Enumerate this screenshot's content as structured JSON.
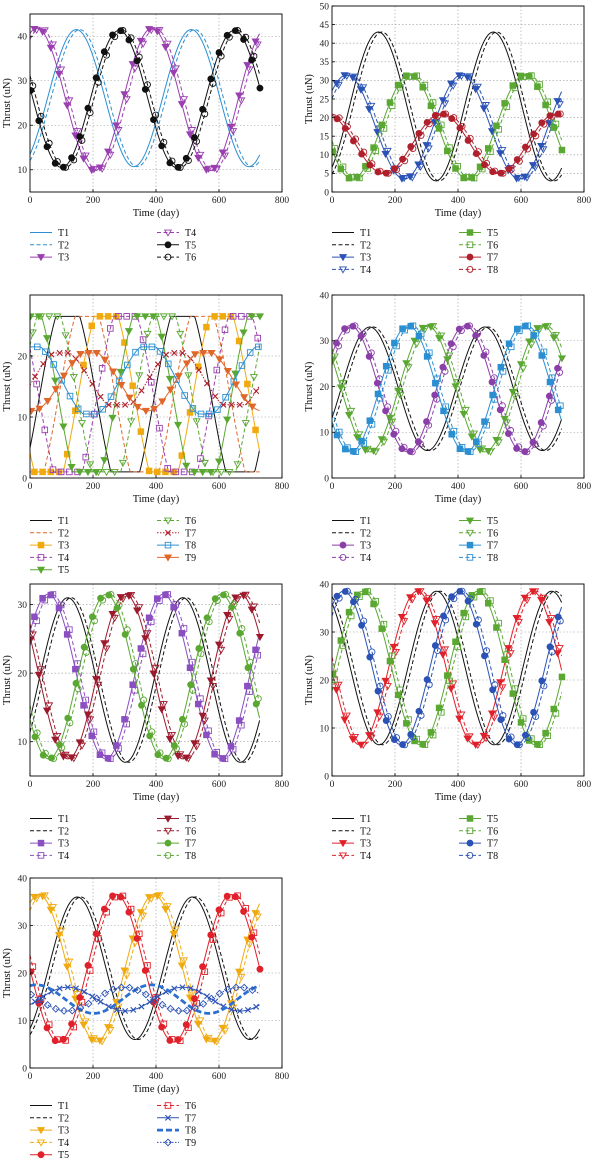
{
  "chart_data": [
    {
      "type": "line",
      "xlabel": "Time (day)",
      "ylabel": "Thrust (uN)",
      "xlim": [
        0,
        800
      ],
      "ylim": [
        5,
        45
      ],
      "xticks": [
        0,
        200,
        400,
        600,
        800
      ],
      "yticks": [
        10,
        20,
        30,
        40
      ],
      "grid": true,
      "legend": "bottom",
      "series": [
        {
          "name": "T1",
          "color": "#2b8fd1",
          "dash": "solid",
          "marker": "none",
          "mean": 26.1,
          "amp": 15.4,
          "period": 365,
          "phase": 147,
          "x_end": 730
        },
        {
          "name": "T2",
          "color": "#2b8fd1",
          "dash": "dashed",
          "marker": "none",
          "mean": 26.1,
          "amp": 15.4,
          "period": 365,
          "phase": 158,
          "x_end": 730
        },
        {
          "name": "T3",
          "color": "#9a3fb0",
          "dash": "solid",
          "marker": "tri-down",
          "mean": 25.8,
          "amp": 16.0,
          "period": 365,
          "phase": 22,
          "x_end": 730
        },
        {
          "name": "T4",
          "color": "#9a3fb0",
          "dash": "dashed",
          "marker": "tri-down-open",
          "mean": 25.8,
          "amp": 16.0,
          "period": 365,
          "phase": 33,
          "x_end": 730
        },
        {
          "name": "T5",
          "color": "#111111",
          "dash": "solid",
          "marker": "circle",
          "mean": 25.9,
          "amp": 15.4,
          "period": 365,
          "phase": 283,
          "x_end": 730
        },
        {
          "name": "T6",
          "color": "#111111",
          "dash": "dashed",
          "marker": "circle-open",
          "mean": 25.9,
          "amp": 15.4,
          "period": 365,
          "phase": 294,
          "x_end": 730
        }
      ]
    },
    {
      "type": "line",
      "xlabel": "Time (day)",
      "ylabel": "Thrust (uN)",
      "xlim": [
        0,
        800
      ],
      "ylim": [
        0,
        50
      ],
      "xticks": [
        0,
        200,
        400,
        600,
        800
      ],
      "yticks": [
        0,
        5,
        10,
        15,
        20,
        25,
        30,
        35,
        40,
        45,
        50
      ],
      "grid": true,
      "legend": "bottom",
      "series": [
        {
          "name": "T1",
          "color": "#111111",
          "dash": "solid",
          "marker": "none",
          "mean": 23.0,
          "amp": 20.0,
          "period": 365,
          "phase": 147,
          "x_end": 730
        },
        {
          "name": "T2",
          "color": "#111111",
          "dash": "dashed",
          "marker": "none",
          "mean": 23.0,
          "amp": 20.0,
          "period": 365,
          "phase": 158,
          "x_end": 730
        },
        {
          "name": "T3",
          "color": "#2b52b5",
          "dash": "solid",
          "marker": "tri-down",
          "mean": 17.5,
          "amp": 14.0,
          "period": 365,
          "phase": 47,
          "x_end": 730
        },
        {
          "name": "T4",
          "color": "#2b52b5",
          "dash": "dashed",
          "marker": "tri-down-open",
          "mean": 17.5,
          "amp": 14.0,
          "period": 365,
          "phase": 58,
          "x_end": 730
        },
        {
          "name": "T5",
          "color": "#5aa832",
          "dash": "solid",
          "marker": "square",
          "mean": 17.5,
          "amp": 14.0,
          "period": 365,
          "phase": 247,
          "x_end": 730
        },
        {
          "name": "T6",
          "color": "#5aa832",
          "dash": "dashed",
          "marker": "square-open",
          "mean": 17.5,
          "amp": 14.0,
          "period": 365,
          "phase": 258,
          "x_end": 730
        },
        {
          "name": "T7",
          "color": "#b0202c",
          "dash": "solid",
          "marker": "circle",
          "mean": 13.0,
          "amp": 8.0,
          "period": 365,
          "phase": 347,
          "x_end": 730
        },
        {
          "name": "T8",
          "color": "#b0202c",
          "dash": "dashed",
          "marker": "circle-open",
          "mean": 13.0,
          "amp": 8.0,
          "period": 365,
          "phase": 358,
          "x_end": 730
        }
      ]
    },
    {
      "type": "line",
      "xlabel": "Time (day)",
      "ylabel": "Thrust (uN)",
      "xlim": [
        0,
        800
      ],
      "ylim": [
        0,
        30
      ],
      "xticks": [
        0,
        200,
        400,
        600,
        800
      ],
      "yticks": [
        0,
        10,
        20
      ],
      "grid": true,
      "legend": "bottom",
      "series": [
        {
          "name": "T1",
          "color": "#111111",
          "dash": "solid",
          "marker": "none",
          "kind": "clip",
          "mean": 13.0,
          "amp": 17.0,
          "lo": 1,
          "hi": 26.5,
          "period": 365,
          "phase": 120,
          "x_end": 730
        },
        {
          "name": "T2",
          "color": "#e0672a",
          "dash": "dashed",
          "marker": "none",
          "kind": "clip",
          "mean": 13.0,
          "amp": 17.0,
          "lo": 1,
          "hi": 26.5,
          "period": 365,
          "phase": 181,
          "x_end": 730
        },
        {
          "name": "T3",
          "color": "#f0aa10",
          "dash": "solid",
          "marker": "square",
          "kind": "clip",
          "mean": 13.0,
          "amp": 17.0,
          "lo": 1,
          "hi": 26.5,
          "period": 365,
          "phase": 242,
          "x_end": 730
        },
        {
          "name": "T4",
          "color": "#9a3fb0",
          "dash": "dashed",
          "marker": "square-open",
          "kind": "clip",
          "mean": 13.0,
          "amp": 17.0,
          "lo": 1,
          "hi": 26.5,
          "period": 365,
          "phase": 303,
          "x_end": 730
        },
        {
          "name": "T5",
          "color": "#5aa832",
          "dash": "solid",
          "marker": "tri-down",
          "kind": "clip",
          "mean": 13.0,
          "amp": 17.0,
          "lo": 1,
          "hi": 26.5,
          "period": 365,
          "phase": 364,
          "x_end": 730
        },
        {
          "name": "T6",
          "color": "#5aa832",
          "dash": "dashed",
          "marker": "tri-down-open",
          "kind": "clip",
          "mean": 13.0,
          "amp": 17.0,
          "lo": 1,
          "hi": 26.5,
          "period": 365,
          "phase": 60,
          "x_end": 730
        },
        {
          "name": "T7",
          "color": "#b0202c",
          "dash": "dotted",
          "marker": "x",
          "kind": "clip",
          "mean": 16.0,
          "amp": 5.0,
          "lo": 12,
          "hi": 20.5,
          "period": 365,
          "phase": 100,
          "x_end": 730
        },
        {
          "name": "T8",
          "color": "#2b8fd1",
          "dash": "solid",
          "marker": "square-open",
          "kind": "clip",
          "mean": 16.0,
          "amp": 6.0,
          "lo": 10.5,
          "hi": 21.5,
          "period": 365,
          "phase": 10,
          "x_end": 730
        },
        {
          "name": "T9",
          "color": "#e0672a",
          "dash": "solid",
          "marker": "tri-down",
          "kind": "clip",
          "mean": 16.0,
          "amp": 5.0,
          "lo": 11,
          "hi": 20.5,
          "period": 365,
          "phase": 190,
          "x_end": 730
        }
      ]
    },
    {
      "type": "line",
      "xlabel": "Time (day)",
      "ylabel": "Thrust (uN)",
      "xlim": [
        0,
        800
      ],
      "ylim": [
        0,
        40
      ],
      "xticks": [
        0,
        200,
        400,
        600,
        800
      ],
      "yticks": [
        0,
        10,
        20,
        30,
        40
      ],
      "grid": true,
      "legend": "bottom",
      "series": [
        {
          "name": "T1",
          "color": "#111111",
          "dash": "solid",
          "marker": "none",
          "mean": 19.5,
          "amp": 13.5,
          "period": 365,
          "phase": 120,
          "x_end": 730
        },
        {
          "name": "T2",
          "color": "#111111",
          "dash": "dashed",
          "marker": "none",
          "mean": 19.5,
          "amp": 13.5,
          "period": 365,
          "phase": 131,
          "x_end": 730
        },
        {
          "name": "T3",
          "color": "#8a3fa8",
          "dash": "solid",
          "marker": "circle",
          "mean": 19.5,
          "amp": 13.8,
          "period": 365,
          "phase": 58,
          "x_end": 730
        },
        {
          "name": "T4",
          "color": "#8a3fa8",
          "dash": "dashed",
          "marker": "circle-open",
          "mean": 19.5,
          "amp": 13.8,
          "period": 365,
          "phase": 69,
          "x_end": 730
        },
        {
          "name": "T5",
          "color": "#5aa832",
          "dash": "solid",
          "marker": "tri-down",
          "mean": 19.5,
          "amp": 13.8,
          "period": 365,
          "phase": 303,
          "x_end": 730
        },
        {
          "name": "T6",
          "color": "#5aa832",
          "dash": "dashed",
          "marker": "tri-down-open",
          "mean": 19.5,
          "amp": 13.8,
          "period": 365,
          "phase": 314,
          "x_end": 730
        },
        {
          "name": "T7",
          "color": "#2b8fd1",
          "dash": "solid",
          "marker": "square",
          "mean": 19.5,
          "amp": 13.8,
          "period": 365,
          "phase": 242,
          "x_end": 730
        },
        {
          "name": "T8",
          "color": "#2b8fd1",
          "dash": "dashed",
          "marker": "square-open",
          "mean": 19.5,
          "amp": 13.8,
          "period": 365,
          "phase": 253,
          "x_end": 730
        }
      ]
    },
    {
      "type": "line",
      "xlabel": "Time (day)",
      "ylabel": "Thrust (uN)",
      "xlim": [
        0,
        800
      ],
      "ylim": [
        5,
        33
      ],
      "xticks": [
        0,
        200,
        400,
        600,
        800
      ],
      "yticks": [
        10,
        20,
        30
      ],
      "grid": true,
      "legend": "bottom",
      "series": [
        {
          "name": "T1",
          "color": "#111111",
          "dash": "solid",
          "marker": "none",
          "mean": 19.0,
          "amp": 12.0,
          "period": 365,
          "phase": 120,
          "x_end": 730
        },
        {
          "name": "T2",
          "color": "#111111",
          "dash": "dashed",
          "marker": "none",
          "mean": 19.0,
          "amp": 12.0,
          "period": 365,
          "phase": 131,
          "x_end": 730
        },
        {
          "name": "T3",
          "color": "#8a4fc0",
          "dash": "solid",
          "marker": "square",
          "mean": 19.5,
          "amp": 12.0,
          "period": 365,
          "phase": 58,
          "x_end": 730
        },
        {
          "name": "T4",
          "color": "#8a4fc0",
          "dash": "dashed",
          "marker": "square-open",
          "mean": 19.5,
          "amp": 12.0,
          "period": 365,
          "phase": 69,
          "x_end": 730
        },
        {
          "name": "T5",
          "color": "#9c1a2c",
          "dash": "solid",
          "marker": "tri-down",
          "mean": 19.5,
          "amp": 12.0,
          "period": 365,
          "phase": 303,
          "x_end": 730
        },
        {
          "name": "T6",
          "color": "#9c1a2c",
          "dash": "dashed",
          "marker": "tri-down-open",
          "mean": 19.5,
          "amp": 12.0,
          "period": 365,
          "phase": 314,
          "x_end": 730
        },
        {
          "name": "T7",
          "color": "#5aa832",
          "dash": "solid",
          "marker": "circle",
          "mean": 19.5,
          "amp": 12.0,
          "period": 365,
          "phase": 242,
          "x_end": 730
        },
        {
          "name": "T8",
          "color": "#5aa832",
          "dash": "dashed",
          "marker": "circle-open",
          "mean": 19.5,
          "amp": 12.0,
          "period": 365,
          "phase": 253,
          "x_end": 730
        }
      ]
    },
    {
      "type": "line",
      "xlabel": "Time (day)",
      "ylabel": "Thrust (uN)",
      "xlim": [
        0,
        800
      ],
      "ylim": [
        0,
        40
      ],
      "xticks": [
        0,
        200,
        400,
        600,
        800
      ],
      "yticks": [
        0,
        10,
        20,
        30,
        40
      ],
      "grid": true,
      "legend": "bottom",
      "series": [
        {
          "name": "T1",
          "color": "#111111",
          "dash": "solid",
          "marker": "none",
          "mean": 22.5,
          "amp": 16.0,
          "period": 365,
          "phase": 332,
          "x_end": 730
        },
        {
          "name": "T2",
          "color": "#111111",
          "dash": "dashed",
          "marker": "none",
          "mean": 22.5,
          "amp": 16.0,
          "period": 365,
          "phase": 343,
          "x_end": 730
        },
        {
          "name": "T3",
          "color": "#e0202a",
          "dash": "solid",
          "marker": "tri-down",
          "mean": 22.5,
          "amp": 16.0,
          "period": 365,
          "phase": 271,
          "x_end": 730
        },
        {
          "name": "T4",
          "color": "#e0202a",
          "dash": "dashed",
          "marker": "tri-down-open",
          "mean": 22.5,
          "amp": 16.0,
          "period": 365,
          "phase": 282,
          "x_end": 730
        },
        {
          "name": "T5",
          "color": "#5aa832",
          "dash": "solid",
          "marker": "square",
          "mean": 22.5,
          "amp": 16.0,
          "period": 365,
          "phase": 98,
          "x_end": 730
        },
        {
          "name": "T6",
          "color": "#5aa832",
          "dash": "dashed",
          "marker": "square-open",
          "mean": 22.5,
          "amp": 16.0,
          "period": 365,
          "phase": 109,
          "x_end": 730
        },
        {
          "name": "T7",
          "color": "#2b52b5",
          "dash": "solid",
          "marker": "circle",
          "mean": 22.5,
          "amp": 16.0,
          "period": 365,
          "phase": 37,
          "x_end": 730
        },
        {
          "name": "T8",
          "color": "#2b52b5",
          "dash": "dashed",
          "marker": "circle-open",
          "mean": 22.5,
          "amp": 16.0,
          "period": 365,
          "phase": 48,
          "x_end": 730
        }
      ]
    },
    {
      "type": "line",
      "xlabel": "Time (day)",
      "ylabel": "Thrust (uN)",
      "xlim": [
        0,
        800
      ],
      "ylim": [
        0,
        40
      ],
      "xticks": [
        0,
        200,
        400,
        600,
        800
      ],
      "yticks": [
        0,
        10,
        20,
        30,
        40
      ],
      "grid": true,
      "legend": "bottom",
      "series": [
        {
          "name": "T1",
          "color": "#111111",
          "dash": "solid",
          "marker": "none",
          "mean": 21.0,
          "amp": 15.0,
          "period": 365,
          "phase": 150,
          "x_end": 730
        },
        {
          "name": "T2",
          "color": "#111111",
          "dash": "dashed",
          "marker": "none",
          "mean": 21.0,
          "amp": 15.0,
          "period": 365,
          "phase": 161,
          "x_end": 730
        },
        {
          "name": "T3",
          "color": "#f0aa10",
          "dash": "solid",
          "marker": "tri-down",
          "mean": 21.0,
          "amp": 15.5,
          "period": 365,
          "phase": 28,
          "x_end": 730
        },
        {
          "name": "T4",
          "color": "#f0aa10",
          "dash": "dashed",
          "marker": "tri-down-open",
          "mean": 21.0,
          "amp": 15.5,
          "period": 365,
          "phase": 39,
          "x_end": 730
        },
        {
          "name": "T5",
          "color": "#e0202a",
          "dash": "solid",
          "marker": "circle",
          "mean": 21.0,
          "amp": 15.5,
          "period": 365,
          "phase": 273,
          "x_end": 730
        },
        {
          "name": "T6",
          "color": "#e0202a",
          "dash": "dashed",
          "marker": "square-open",
          "mean": 21.0,
          "amp": 15.5,
          "period": 365,
          "phase": 284,
          "x_end": 730
        },
        {
          "name": "T7",
          "color": "#2b52b5",
          "dash": "solid",
          "marker": "x",
          "mean": 14.5,
          "amp": 2.5,
          "period": 365,
          "phase": 120,
          "x_end": 730
        },
        {
          "name": "T8",
          "color": "#2b6fd1",
          "dash": "dashed-thick",
          "marker": "none",
          "mean": 14.5,
          "amp": 3.0,
          "period": 365,
          "phase": 20,
          "x_end": 730
        },
        {
          "name": "T9",
          "color": "#2b52b5",
          "dash": "dotted",
          "marker": "diamond-open",
          "mean": 14.5,
          "amp": 2.5,
          "period": 365,
          "phase": 300,
          "x_end": 730
        }
      ]
    }
  ]
}
